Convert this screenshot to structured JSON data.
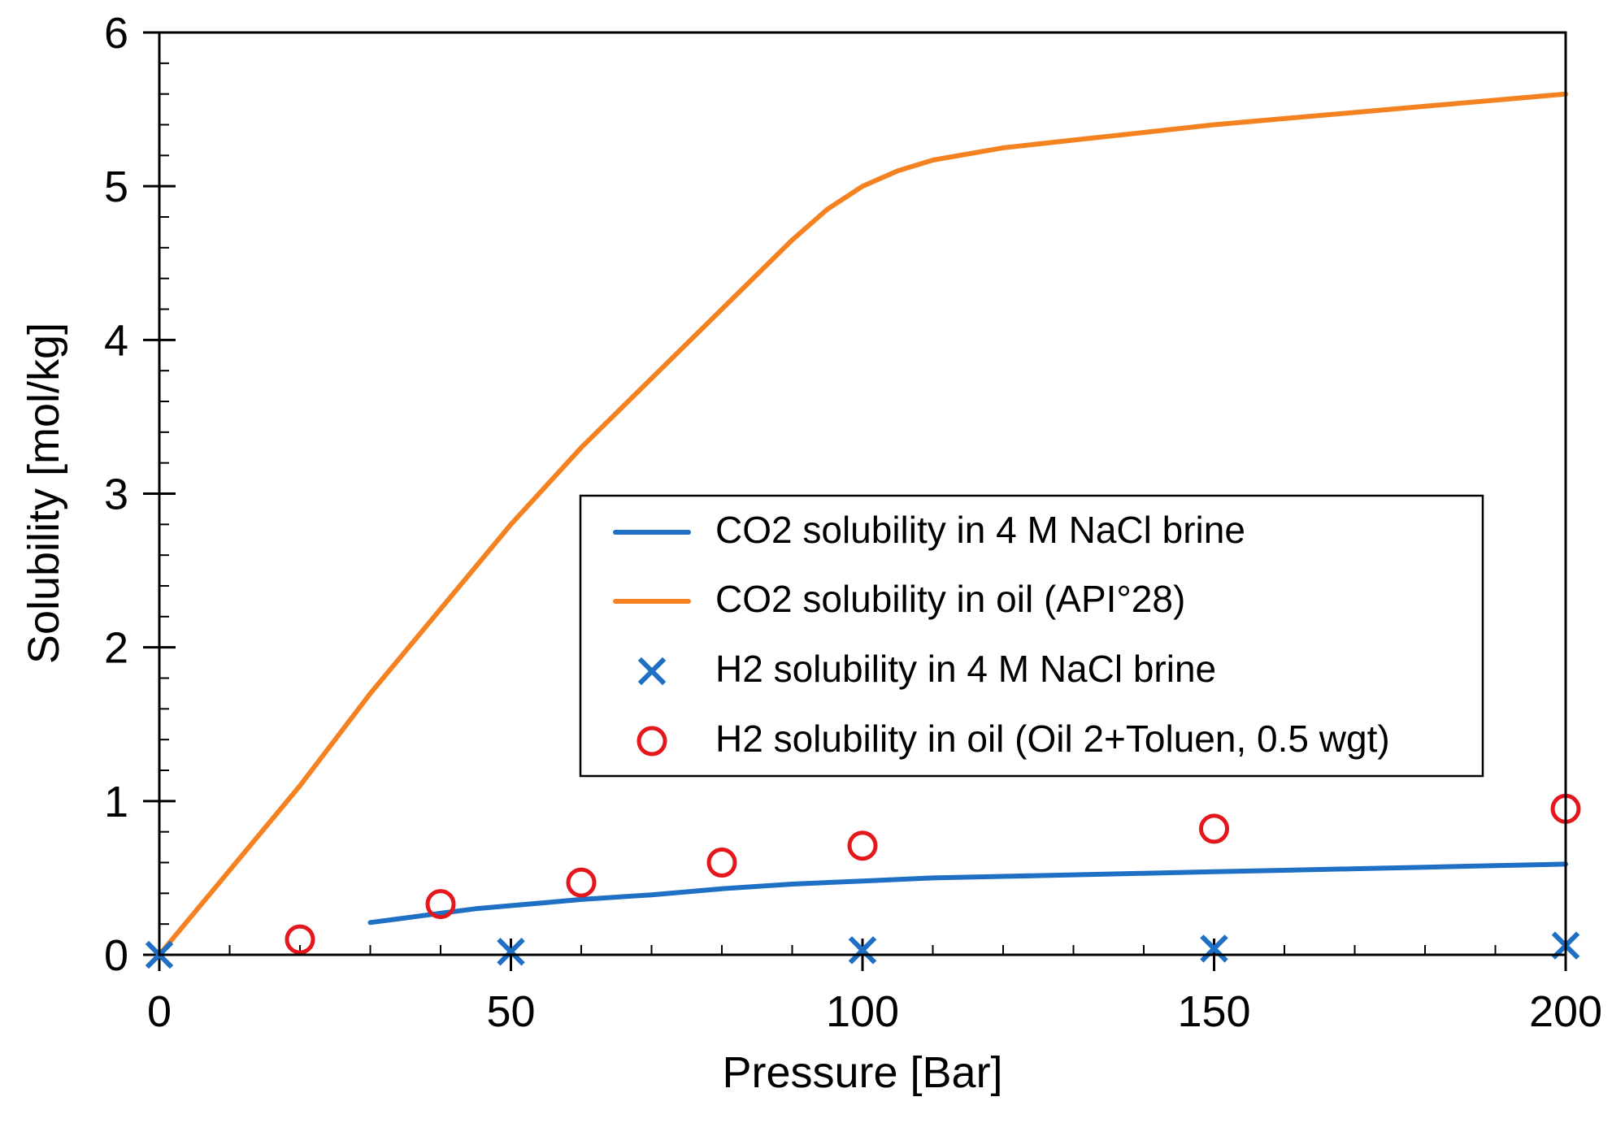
{
  "chart_data": {
    "type": "line",
    "title": "",
    "xlabel": "Pressure [Bar]",
    "ylabel": "Solubility [mol/kg]",
    "xlim": [
      0,
      200
    ],
    "ylim": [
      0,
      6
    ],
    "x_ticks": [
      0,
      50,
      100,
      150,
      200
    ],
    "y_ticks": [
      0,
      1,
      2,
      3,
      4,
      5,
      6
    ],
    "grid": false,
    "legend_position": "center-right",
    "series": [
      {
        "name": "CO2 solubility in 4 M NaCl brine",
        "type": "line",
        "color": "#1F6FC5",
        "x": [
          30,
          35,
          40,
          45,
          50,
          55,
          60,
          70,
          80,
          90,
          100,
          110,
          120,
          130,
          140,
          150,
          160,
          170,
          180,
          190,
          200
        ],
        "y": [
          0.21,
          0.24,
          0.27,
          0.3,
          0.32,
          0.34,
          0.36,
          0.39,
          0.43,
          0.46,
          0.48,
          0.5,
          0.51,
          0.52,
          0.53,
          0.54,
          0.55,
          0.56,
          0.57,
          0.58,
          0.59
        ]
      },
      {
        "name": "CO2 solubility in oil (API°28)",
        "type": "line",
        "color": "#F58220",
        "x": [
          0,
          10,
          20,
          30,
          40,
          50,
          60,
          70,
          80,
          90,
          95,
          100,
          105,
          110,
          120,
          130,
          140,
          150,
          160,
          170,
          180,
          190,
          200
        ],
        "y": [
          0,
          0.55,
          1.1,
          1.7,
          2.25,
          2.8,
          3.3,
          3.75,
          4.2,
          4.65,
          4.85,
          5.0,
          5.1,
          5.17,
          5.25,
          5.3,
          5.35,
          5.4,
          5.44,
          5.48,
          5.52,
          5.56,
          5.6
        ]
      },
      {
        "name": "H2 solubility in 4 M NaCl brine",
        "type": "scatter",
        "marker": "x",
        "color": "#1F6FC5",
        "x": [
          0,
          50,
          100,
          150,
          200
        ],
        "y": [
          0,
          0.02,
          0.03,
          0.04,
          0.06
        ]
      },
      {
        "name": "H2 solubility in oil (Oil 2+Toluen, 0.5 wgt)",
        "type": "scatter",
        "marker": "o",
        "color": "#E3171C",
        "x": [
          20,
          40,
          60,
          80,
          100,
          150,
          200
        ],
        "y": [
          0.1,
          0.33,
          0.47,
          0.6,
          0.71,
          0.82,
          0.95
        ]
      }
    ]
  }
}
